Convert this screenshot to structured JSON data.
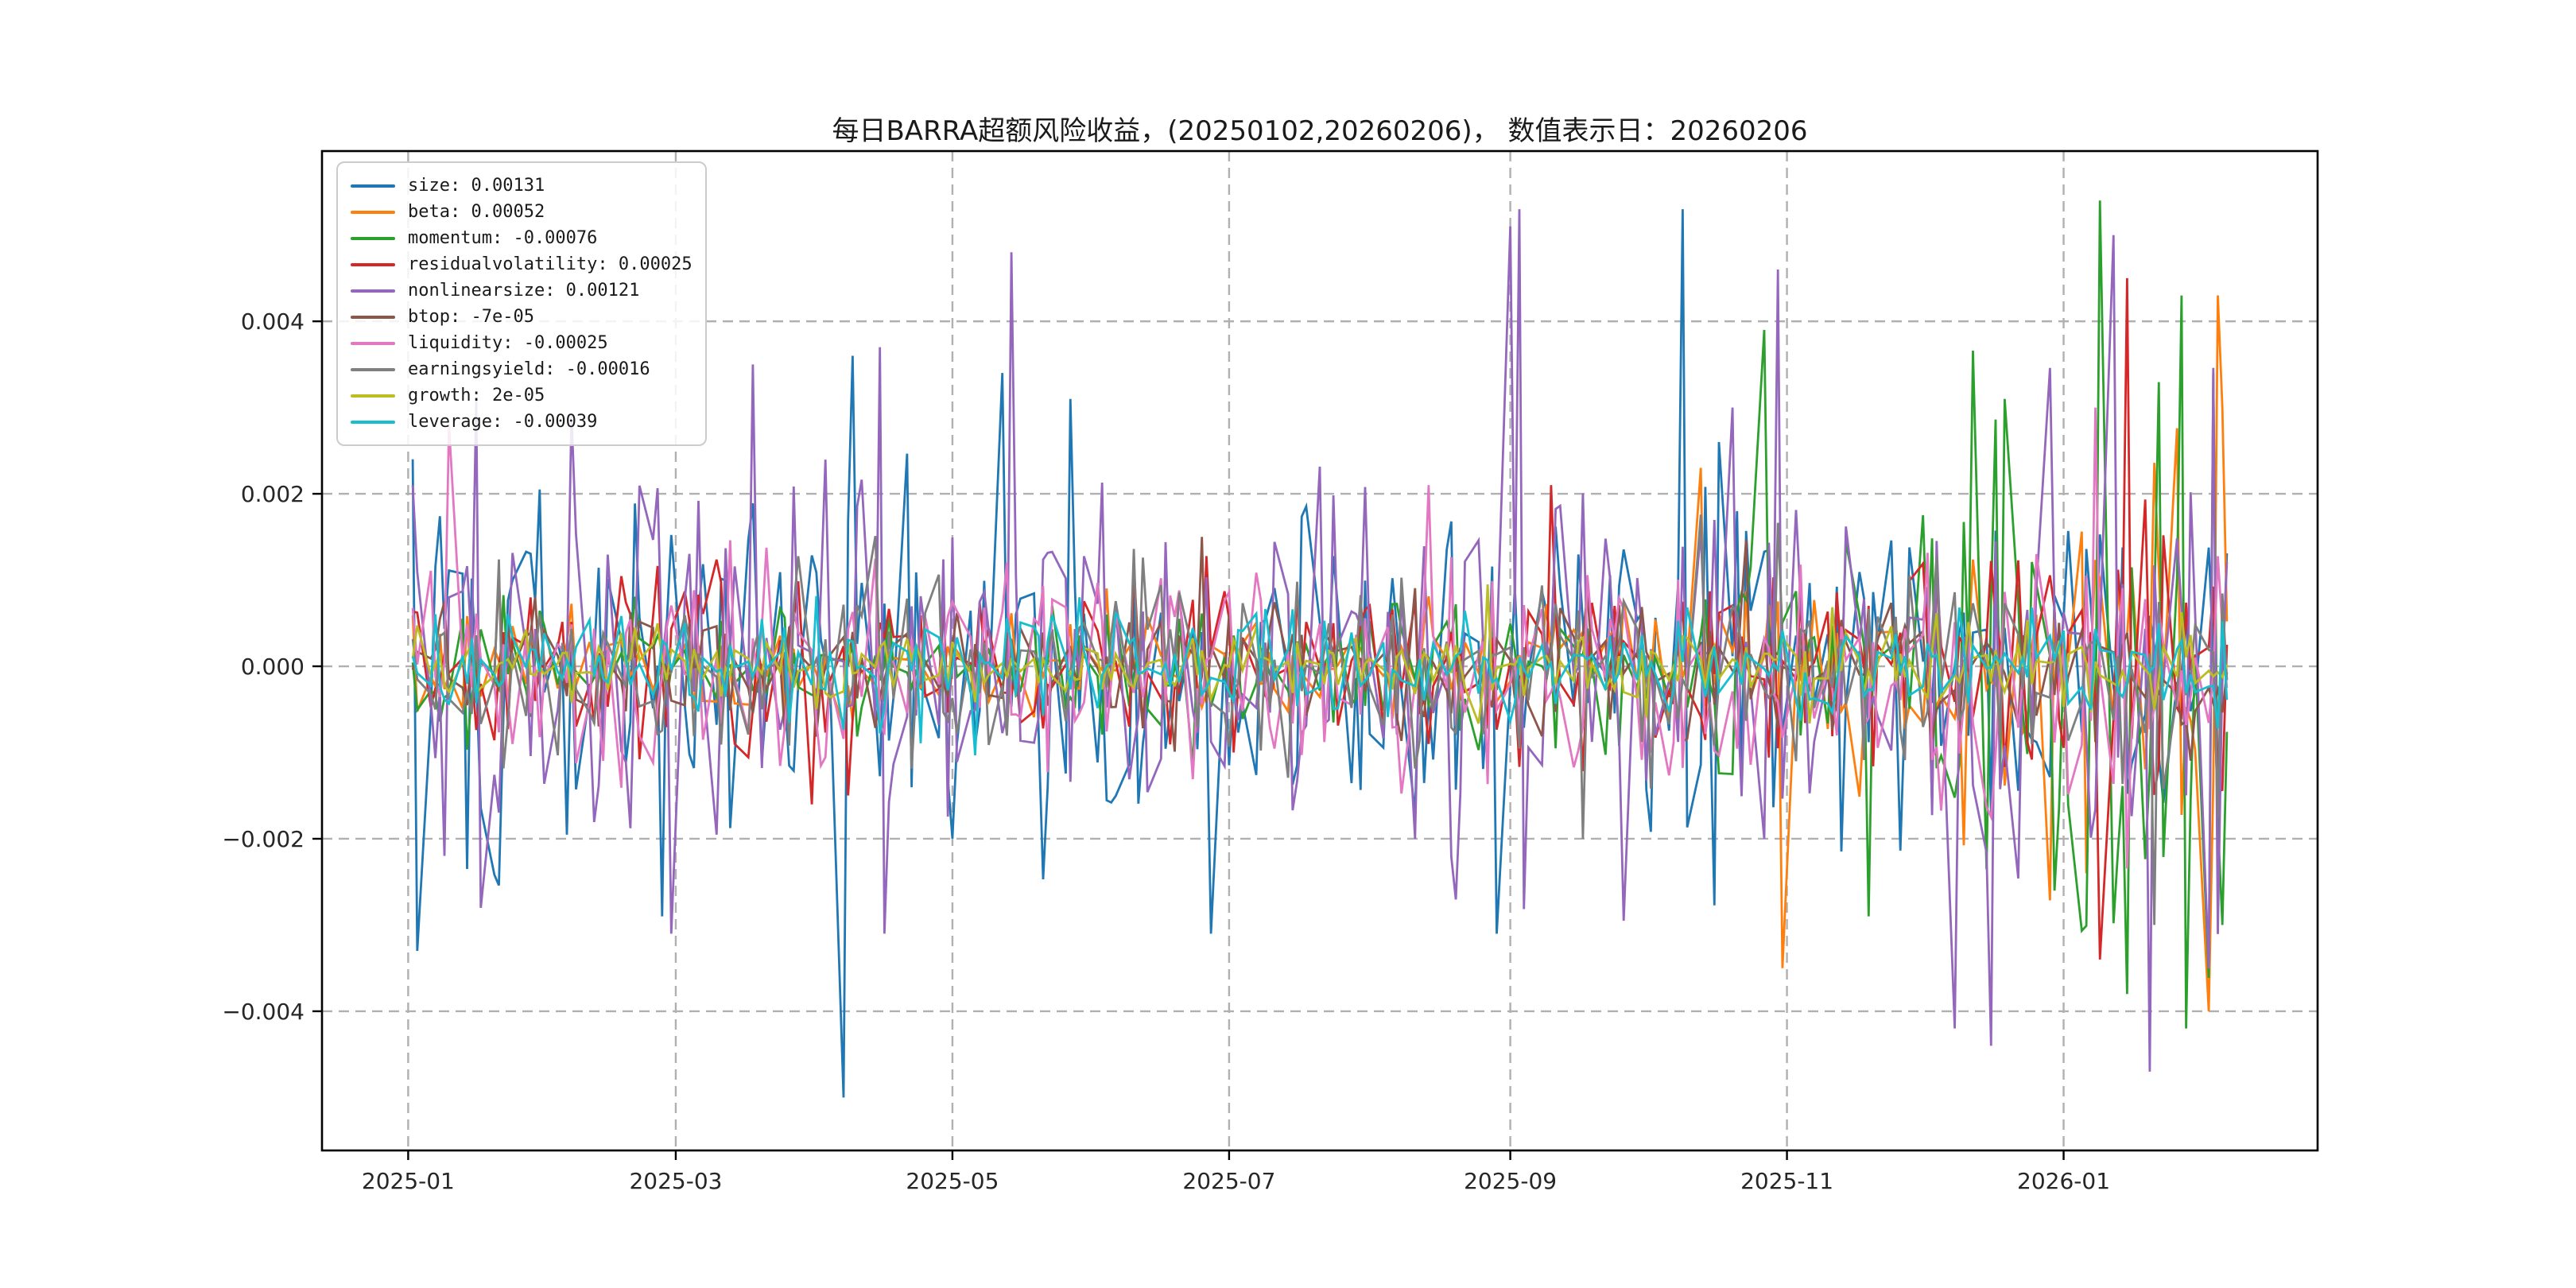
{
  "chart_data": {
    "type": "line",
    "title": "每日BARRA超额风险收益，(20250102,20260206)， 数值表示日：20260206",
    "value_date": "20260206",
    "x_axis": {
      "frequency": "business-daily",
      "data_range": [
        "2025-01-02",
        "2026-02-06"
      ],
      "axis_range": [
        "2024-12-13",
        "2026-02-26"
      ],
      "ticks": [
        {
          "label": "2025-01",
          "date": "2025-01-01"
        },
        {
          "label": "2025-03",
          "date": "2025-03-01"
        },
        {
          "label": "2025-05",
          "date": "2025-05-01"
        },
        {
          "label": "2025-07",
          "date": "2025-07-01"
        },
        {
          "label": "2025-09",
          "date": "2025-09-01"
        },
        {
          "label": "2025-11",
          "date": "2025-11-01"
        },
        {
          "label": "2026-01",
          "date": "2026-01-01"
        }
      ]
    },
    "y_axis": {
      "range": [
        -0.005614,
        0.005974
      ],
      "ticks": [
        {
          "label": "0.004",
          "value": 0.004
        },
        {
          "label": "0.002",
          "value": 0.002
        },
        {
          "label": "0.000",
          "value": 0.0
        },
        {
          "label": "−0.002",
          "value": -0.002
        },
        {
          "label": "−0.004",
          "value": -0.004
        }
      ]
    },
    "grid": {
      "show": true,
      "style": "dashed",
      "color": "#b0b0b0"
    },
    "legend": {
      "position": "upper-left",
      "entries": [
        "size: 0.00131",
        "beta: 0.00052",
        "momentum: -0.00076",
        "residualvolatility: 0.00025",
        "nonlinearsize: 0.00121",
        "btop: -7e-05",
        "liquidity: -0.00025",
        "earningsyield: -0.00016",
        "growth: 2e-05",
        "leverage: -0.00039"
      ]
    },
    "series": [
      {
        "name": "size",
        "color": "#1f77b4",
        "seed": 101,
        "final_value": 0.00131,
        "volatility_profile": [
          [
            0,
            1.15
          ],
          [
            0.2,
            1.1
          ],
          [
            0.45,
            1.0
          ],
          [
            0.6,
            0.95
          ],
          [
            0.75,
            0.95
          ],
          [
            1,
            0.85
          ]
        ],
        "key_points": [
          [
            "2025-01-02",
            0.0024
          ],
          [
            "2025-01-03",
            -0.0033
          ],
          [
            "2025-02-26",
            -0.0029
          ],
          [
            "2025-04-07",
            -0.005
          ],
          [
            "2025-04-09",
            0.0036
          ],
          [
            "2025-05-27",
            0.0031
          ],
          [
            "2025-06-27",
            -0.0031
          ],
          [
            "2025-08-29",
            -0.0031
          ],
          [
            "2025-10-09",
            0.0053
          ],
          [
            "2025-10-17",
            0.0026
          ],
          [
            "2026-02-06",
            0.00131
          ]
        ]
      },
      {
        "name": "beta",
        "color": "#ff7f0e",
        "seed": 202,
        "final_value": 0.00052,
        "volatility_profile": [
          [
            0,
            0.3
          ],
          [
            0.6,
            0.3
          ],
          [
            0.7,
            0.45
          ],
          [
            0.8,
            0.6
          ],
          [
            0.9,
            0.9
          ],
          [
            1,
            1.5
          ]
        ],
        "key_points": [
          [
            "2025-10-13",
            0.0023
          ],
          [
            "2025-10-31",
            -0.0035
          ],
          [
            "2026-01-06",
            -0.0024
          ],
          [
            "2026-02-02",
            -0.004
          ],
          [
            "2026-02-04",
            0.0043
          ],
          [
            "2026-02-06",
            0.00052
          ]
        ]
      },
      {
        "name": "momentum",
        "color": "#2ca02c",
        "seed": 303,
        "final_value": -0.00076,
        "volatility_profile": [
          [
            0,
            0.35
          ],
          [
            0.55,
            0.35
          ],
          [
            0.7,
            0.6
          ],
          [
            0.8,
            1.0
          ],
          [
            0.9,
            1.9
          ],
          [
            1,
            2.4
          ]
        ],
        "key_points": [
          [
            "2025-10-27",
            0.0039
          ],
          [
            "2025-11-19",
            -0.0029
          ],
          [
            "2025-12-19",
            0.0031
          ],
          [
            "2026-01-09",
            0.0054
          ],
          [
            "2026-01-15",
            -0.0038
          ],
          [
            "2026-01-27",
            0.0043
          ],
          [
            "2026-01-28",
            -0.0042
          ],
          [
            "2026-02-03",
            0.0034
          ],
          [
            "2026-02-05",
            -0.003
          ],
          [
            "2026-02-06",
            -0.00076
          ]
        ]
      },
      {
        "name": "residualvolatility",
        "color": "#d62728",
        "seed": 404,
        "final_value": 0.00025,
        "volatility_profile": [
          [
            0,
            0.55
          ],
          [
            0.5,
            0.5
          ],
          [
            0.75,
            0.6
          ],
          [
            0.9,
            0.8
          ],
          [
            1,
            1.1
          ]
        ],
        "key_points": [
          [
            "2025-09-10",
            0.0021
          ],
          [
            "2026-01-09",
            -0.0034
          ],
          [
            "2026-01-15",
            0.0045
          ],
          [
            "2026-02-06",
            0.00025
          ]
        ]
      },
      {
        "name": "nonlinearsize",
        "color": "#9467bd",
        "seed": 505,
        "final_value": 0.00121,
        "volatility_profile": [
          [
            0,
            1.2
          ],
          [
            0.3,
            1.15
          ],
          [
            0.5,
            1.05
          ],
          [
            0.65,
            1.2
          ],
          [
            0.8,
            1.25
          ],
          [
            1,
            1.45
          ]
        ],
        "key_points": [
          [
            "2025-01-16",
            0.0031
          ],
          [
            "2025-01-17",
            -0.0028
          ],
          [
            "2025-02-28",
            -0.0031
          ],
          [
            "2025-03-18",
            0.0035
          ],
          [
            "2025-04-15",
            0.0037
          ],
          [
            "2025-04-16",
            -0.0031
          ],
          [
            "2025-05-14",
            0.0048
          ],
          [
            "2025-09-01",
            0.0051
          ],
          [
            "2025-09-02",
            0.0006
          ],
          [
            "2025-09-03",
            0.0053
          ],
          [
            "2025-10-20",
            0.003
          ],
          [
            "2025-10-30",
            0.0046
          ],
          [
            "2025-12-08",
            -0.0042
          ],
          [
            "2025-12-16",
            -0.0044
          ],
          [
            "2026-01-12",
            0.005
          ],
          [
            "2026-01-20",
            -0.0047
          ],
          [
            "2026-02-02",
            -0.0035
          ],
          [
            "2026-02-06",
            0.00121
          ]
        ]
      },
      {
        "name": "btop",
        "color": "#8c564b",
        "seed": 606,
        "final_value": -7e-05,
        "volatility_profile": [
          [
            0,
            0.4
          ],
          [
            0.5,
            0.42
          ],
          [
            1,
            0.5
          ]
        ],
        "key_points": [
          [
            "2025-06-25",
            0.0015
          ],
          [
            "2026-02-06",
            -7e-05
          ]
        ]
      },
      {
        "name": "liquidity",
        "color": "#e377c2",
        "seed": 707,
        "final_value": -0.00025,
        "volatility_profile": [
          [
            0,
            0.65
          ],
          [
            0.5,
            0.6
          ],
          [
            1,
            0.75
          ]
        ],
        "key_points": [
          [
            "2025-01-10",
            0.0028
          ],
          [
            "2025-08-14",
            0.0021
          ],
          [
            "2026-01-08",
            0.003
          ],
          [
            "2026-02-06",
            -0.00025
          ]
        ]
      },
      {
        "name": "earningsyield",
        "color": "#7f7f7f",
        "seed": 808,
        "final_value": -0.00016,
        "volatility_profile": [
          [
            0,
            0.5
          ],
          [
            0.7,
            0.55
          ],
          [
            1,
            0.7
          ]
        ],
        "key_points": [
          [
            "2025-09-17",
            -0.002
          ],
          [
            "2026-01-21",
            -0.003
          ],
          [
            "2026-02-06",
            -0.00016
          ]
        ]
      },
      {
        "name": "growth",
        "color": "#bcbd22",
        "seed": 909,
        "final_value": 2e-05,
        "volatility_profile": [
          [
            0,
            0.2
          ],
          [
            1,
            0.24
          ]
        ],
        "key_points": [
          [
            "2026-02-06",
            2e-05
          ]
        ]
      },
      {
        "name": "leverage",
        "color": "#17becf",
        "seed": 1010,
        "final_value": -0.00039,
        "volatility_profile": [
          [
            0,
            0.28
          ],
          [
            1,
            0.34
          ]
        ],
        "key_points": [
          [
            "2026-02-06",
            -0.00039
          ]
        ]
      }
    ]
  }
}
